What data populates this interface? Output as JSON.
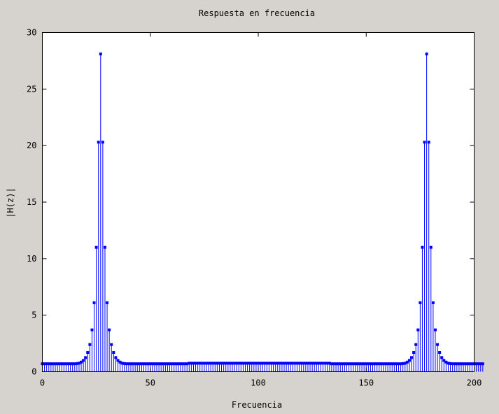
{
  "chart_data": {
    "type": "stem",
    "title": "Respuesta en frecuencia",
    "xlabel": "Frecuencia",
    "ylabel": "|H(z)|",
    "xlim": [
      0,
      200
    ],
    "ylim": [
      0,
      30
    ],
    "xticks": [
      0,
      50,
      100,
      150,
      200
    ],
    "yticks": [
      0,
      5,
      10,
      15,
      20,
      25,
      30
    ],
    "series_color": "#0000ff",
    "background_color": "#d6d3ce",
    "plot_area_color": "#ffffff",
    "series": [
      {
        "x_start": 0,
        "x_step": 1,
        "values": [
          0.7,
          0.7,
          0.7,
          0.7,
          0.7,
          0.7,
          0.7,
          0.7,
          0.7,
          0.7,
          0.7,
          0.7,
          0.7,
          0.7,
          0.7,
          0.7,
          0.72,
          0.75,
          0.85,
          1.0,
          1.25,
          1.7,
          2.4,
          3.7,
          6.1,
          11.0,
          20.3,
          28.1,
          20.3,
          11.0,
          6.1,
          3.7,
          2.4,
          1.7,
          1.25,
          1.0,
          0.85,
          0.75,
          0.72,
          0.7,
          0.7,
          0.7,
          0.7,
          0.7,
          0.7,
          0.7,
          0.7,
          0.7,
          0.7,
          0.7,
          0.7,
          0.7,
          0.7,
          0.7,
          0.7,
          0.7,
          0.7,
          0.7,
          0.7,
          0.7,
          0.7,
          0.7,
          0.7,
          0.7,
          0.7,
          0.7,
          0.7,
          0.7,
          0.75,
          0.75,
          0.75,
          0.75,
          0.75,
          0.75,
          0.75,
          0.75,
          0.75,
          0.75,
          0.75,
          0.75,
          0.75,
          0.75,
          0.75,
          0.75,
          0.75,
          0.75,
          0.75,
          0.75,
          0.75,
          0.75,
          0.75,
          0.75,
          0.75,
          0.75,
          0.75,
          0.75,
          0.75,
          0.75,
          0.75,
          0.75,
          0.75,
          0.75,
          0.75,
          0.75,
          0.75,
          0.75,
          0.75,
          0.75,
          0.75,
          0.75,
          0.75,
          0.75,
          0.75,
          0.75,
          0.75,
          0.75,
          0.75,
          0.75,
          0.75,
          0.75,
          0.75,
          0.75,
          0.75,
          0.75,
          0.75,
          0.75,
          0.75,
          0.75,
          0.75,
          0.75,
          0.75,
          0.75,
          0.75,
          0.75,
          0.7,
          0.7,
          0.7,
          0.7,
          0.7,
          0.7,
          0.7,
          0.7,
          0.7,
          0.7,
          0.7,
          0.7,
          0.7,
          0.7,
          0.7,
          0.7,
          0.7,
          0.7,
          0.7,
          0.7,
          0.7,
          0.7,
          0.7,
          0.7,
          0.7,
          0.7,
          0.7,
          0.7,
          0.7,
          0.7,
          0.7,
          0.7,
          0.7,
          0.72,
          0.75,
          0.85,
          1.0,
          1.25,
          1.7,
          2.4,
          3.7,
          6.1,
          11.0,
          20.3,
          28.1,
          20.3,
          11.0,
          6.1,
          3.7,
          2.4,
          1.7,
          1.25,
          1.0,
          0.85,
          0.75,
          0.72,
          0.7,
          0.7,
          0.7,
          0.7,
          0.7,
          0.7,
          0.7,
          0.7,
          0.7,
          0.7,
          0.7,
          0.7,
          0.7,
          0.7,
          0.7
        ]
      }
    ]
  }
}
